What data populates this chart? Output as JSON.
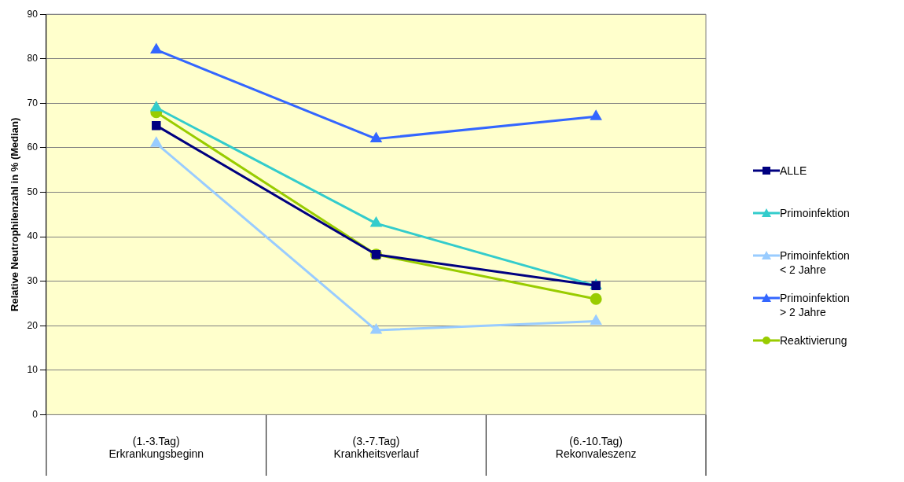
{
  "chart_data": {
    "type": "line",
    "ylabel": "Relative Neutrophilenzahl in % (Median)",
    "categories": [
      "(1.-3.Tag)\nErkrankungsbeginn",
      "(3.-7.Tag)\nKrankheitsverlauf",
      "(6.-10.Tag)\nRekonvaleszenz"
    ],
    "ylim": [
      0,
      90
    ],
    "yticks": [
      0,
      10,
      20,
      30,
      40,
      50,
      60,
      70,
      80,
      90
    ],
    "grid": "y",
    "legend": "right",
    "series": [
      {
        "name": "ALLE",
        "color": "#000080",
        "marker": "square",
        "values": [
          65,
          36,
          29
        ]
      },
      {
        "name": "Primoinfektion",
        "color": "#33cccc",
        "marker": "triangle",
        "values": [
          69,
          43,
          29
        ]
      },
      {
        "name": "Primoinfektion\n< 2 Jahre",
        "color": "#99ccff",
        "marker": "triangle",
        "values": [
          61,
          19,
          21
        ]
      },
      {
        "name": "Primoinfektion\n> 2 Jahre",
        "color": "#3366ff",
        "marker": "triangle",
        "values": [
          82,
          62,
          67
        ]
      },
      {
        "name": "Reaktivierung",
        "color": "#99cc00",
        "marker": "circle",
        "values": [
          68,
          36,
          26
        ]
      }
    ]
  }
}
